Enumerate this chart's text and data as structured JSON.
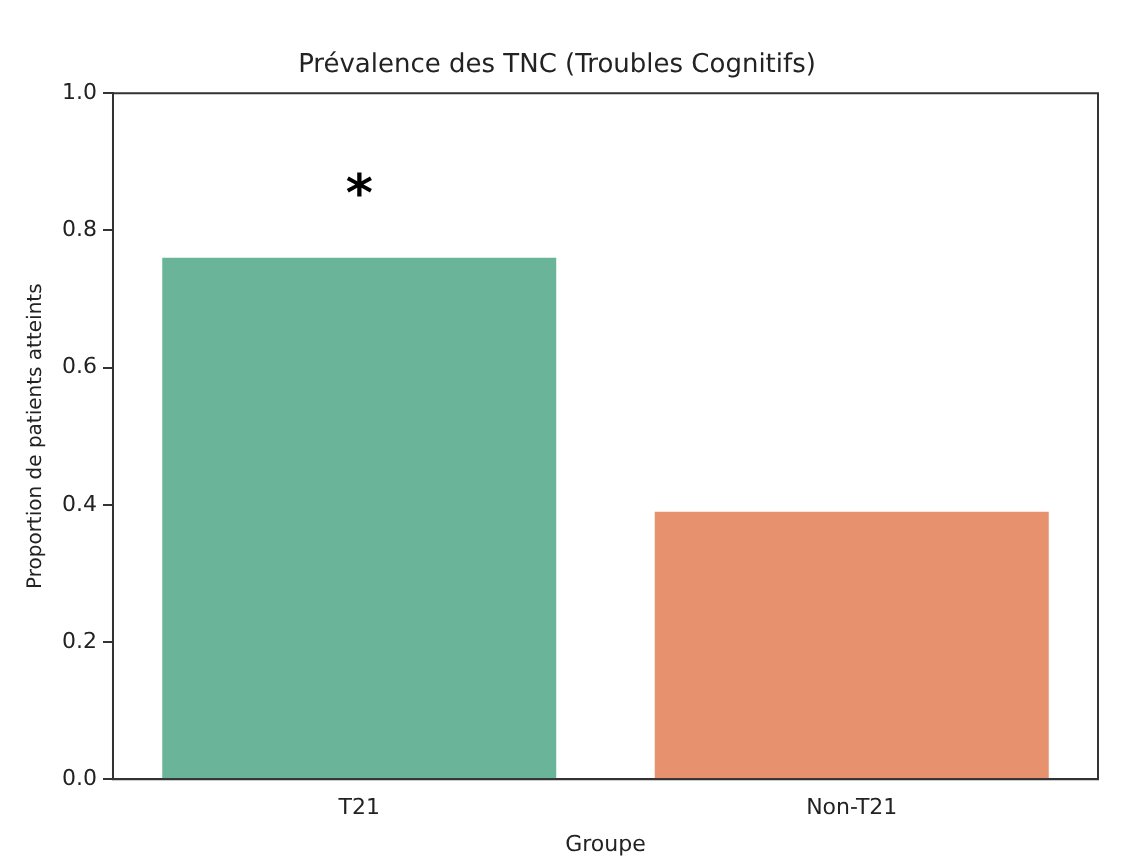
{
  "chart_data": {
    "type": "bar",
    "title": "Prévalence des TNC (Troubles Cognitifs)",
    "xlabel": "Groupe",
    "ylabel": "Proportion de patients atteints",
    "categories": [
      "T21",
      "Non-T21"
    ],
    "values": [
      0.76,
      0.39
    ],
    "colors": [
      "#6ab59a",
      "#e8916e"
    ],
    "ylim": [
      0,
      1
    ],
    "yticks": [
      {
        "value": 0,
        "label": "0.0"
      },
      {
        "value": 0.2,
        "label": "0.2"
      },
      {
        "value": 0.4,
        "label": "0.4"
      },
      {
        "value": 0.6,
        "label": "0.6"
      },
      {
        "value": 0.8,
        "label": "0.8"
      },
      {
        "value": 1,
        "label": "1.0"
      }
    ],
    "grid": false,
    "legend": false,
    "annotations": [
      "*"
    ]
  }
}
